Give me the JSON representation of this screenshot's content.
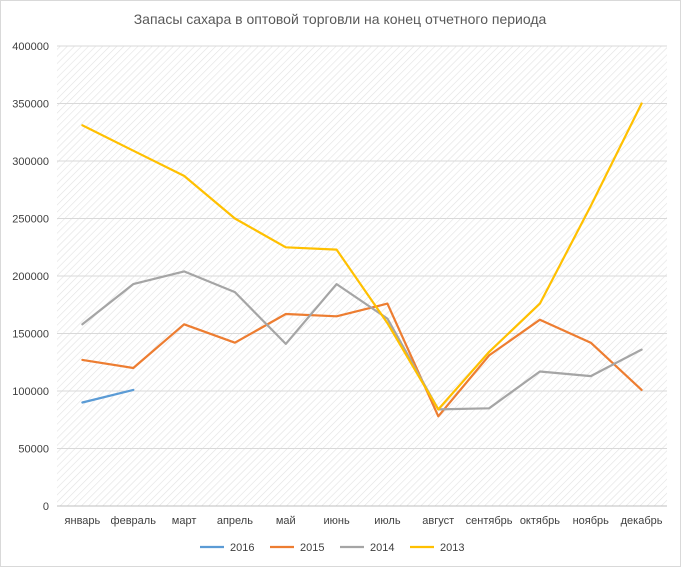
{
  "chart_data": {
    "type": "line",
    "title": "Запасы сахара в оптовой торговли на конец отчетного периода",
    "xlabel": "",
    "ylabel": "",
    "categories": [
      "январь",
      "февраль",
      "март",
      "апрель",
      "май",
      "июнь",
      "июль",
      "август",
      "сентябрь",
      "октябрь",
      "ноябрь",
      "декабрь"
    ],
    "ylim": [
      0,
      400000
    ],
    "yticks": [
      "0",
      "50000",
      "100000",
      "150000",
      "200000",
      "250000",
      "300000",
      "350000",
      "400000"
    ],
    "grid": true,
    "legend_position": "bottom",
    "series": [
      {
        "name": "2016",
        "color": "#5B9BD5",
        "values": [
          90000,
          101000,
          null,
          null,
          null,
          null,
          null,
          null,
          null,
          null,
          null,
          null
        ]
      },
      {
        "name": "2015",
        "color": "#ED7D31",
        "values": [
          127000,
          120000,
          158000,
          142000,
          167000,
          165000,
          176000,
          78000,
          131000,
          162000,
          142000,
          101000
        ]
      },
      {
        "name": "2014",
        "color": "#A5A5A5",
        "values": [
          158000,
          193000,
          204000,
          186000,
          141000,
          193000,
          163000,
          84000,
          85000,
          117000,
          113000,
          136000
        ]
      },
      {
        "name": "2013",
        "color": "#FFC000",
        "values": [
          331000,
          309000,
          287000,
          250000,
          225000,
          223000,
          159000,
          84000,
          134000,
          176000,
          261000,
          350000
        ]
      }
    ]
  }
}
